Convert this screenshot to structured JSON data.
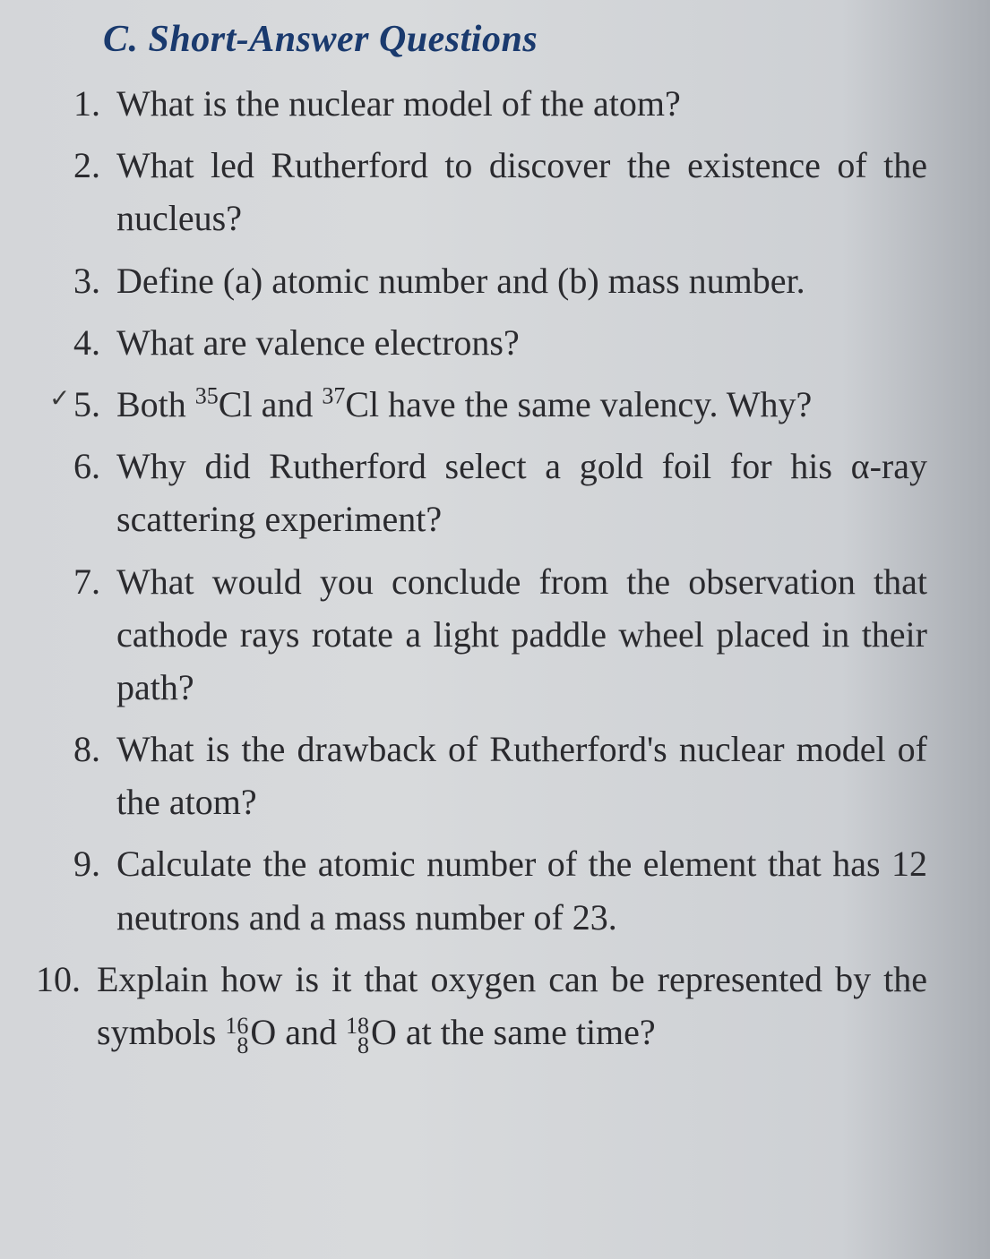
{
  "section": {
    "label": "C.",
    "title": "Short-Answer Questions"
  },
  "questions": [
    {
      "num": "1.",
      "text": "What is the nuclear model of the atom?"
    },
    {
      "num": "2.",
      "text": "What led Rutherford to discover the existence of the nucleus?"
    },
    {
      "num": "3.",
      "text": "Define (a) atomic number and (b) mass number."
    },
    {
      "num": "4.",
      "text": "What are valence electrons?"
    },
    {
      "num": "5.",
      "pre1": "Both ",
      "sup1": "35",
      "el1": "Cl",
      "mid": " and ",
      "sup2": "37",
      "el2": "Cl",
      "post": " have the same valency. Why?"
    },
    {
      "num": "6.",
      "text": "Why did Rutherford select a gold foil for his α-ray scattering experiment?"
    },
    {
      "num": "7.",
      "text": "What would you conclude from the observation that cathode rays rotate a light paddle wheel placed in their path?"
    },
    {
      "num": "8.",
      "text": "What is the drawback of Rutherford's nuclear model of the atom?"
    },
    {
      "num": "9.",
      "text": "Calculate the atomic number of the element that has 12 neutrons and a mass number of 23."
    },
    {
      "num": "10.",
      "pre1": "Explain how is it that oxygen can be represented by the symbols ",
      "top1": "16",
      "bot1": "8",
      "el1": "O",
      "mid": " and ",
      "top2": "18",
      "bot2": "8",
      "el2": "O",
      "post": " at the same time?"
    }
  ],
  "styling": {
    "heading_color": "#1a3a6e",
    "text_color": "#2a2a2e",
    "background_gradient": [
      "#d4d6d9",
      "#d8dadc",
      "#cdd0d4",
      "#a8acb2"
    ],
    "heading_fontsize": 42,
    "body_fontsize": 40,
    "font_family": "Georgia, Times New Roman, serif",
    "heading_style": "italic bold"
  }
}
